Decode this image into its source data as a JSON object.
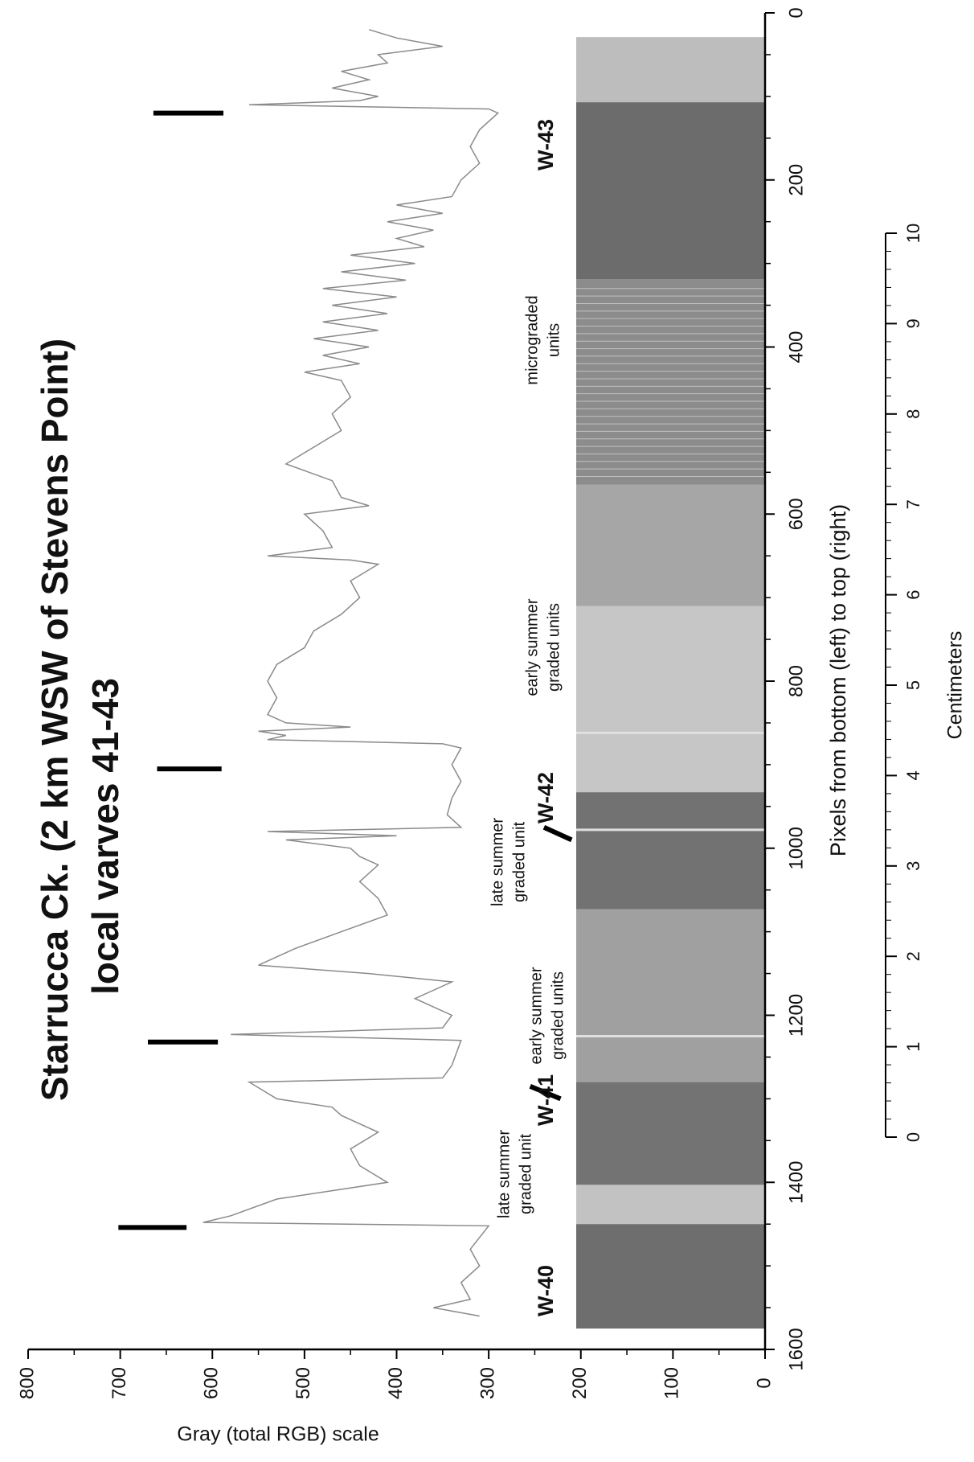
{
  "chart_data": {
    "type": "line",
    "title": "Starrucca Ck. (2 km WSW of Stevens Point)",
    "subtitle": "local varves 41-43",
    "x_label": "Pixels from bottom (left) to top (right)",
    "y_label": "Gray (total RGB) scale",
    "xlim": [
      0,
      1600
    ],
    "xticks": [
      0,
      200,
      400,
      600,
      800,
      1000,
      1200,
      1400,
      1600
    ],
    "ylim": [
      0,
      800
    ],
    "yticks": [
      0,
      100,
      200,
      300,
      400,
      500,
      600,
      700,
      800
    ],
    "color": "#8a8a8a",
    "x": [
      20,
      30,
      40,
      50,
      60,
      70,
      80,
      90,
      100,
      105,
      110,
      115,
      120,
      140,
      160,
      180,
      200,
      220,
      230,
      240,
      250,
      260,
      270,
      280,
      290,
      300,
      310,
      320,
      330,
      340,
      350,
      360,
      370,
      380,
      390,
      400,
      410,
      420,
      430,
      440,
      460,
      480,
      500,
      520,
      540,
      560,
      580,
      590,
      600,
      620,
      640,
      650,
      655,
      660,
      680,
      700,
      720,
      740,
      760,
      780,
      800,
      820,
      840,
      850,
      855,
      860,
      865,
      870,
      875,
      880,
      900,
      920,
      940,
      960,
      975,
      980,
      985,
      990,
      1000,
      1010,
      1020,
      1040,
      1060,
      1080,
      1100,
      1120,
      1140,
      1150,
      1160,
      1180,
      1200,
      1215,
      1223,
      1230,
      1260,
      1275,
      1280,
      1300,
      1310,
      1320,
      1340,
      1360,
      1380,
      1400,
      1420,
      1440,
      1448,
      1452,
      1480,
      1500,
      1520,
      1540,
      1550,
      1560
    ],
    "values": [
      430,
      400,
      350,
      420,
      410,
      460,
      430,
      470,
      420,
      440,
      560,
      300,
      290,
      310,
      320,
      310,
      330,
      340,
      400,
      350,
      410,
      360,
      400,
      370,
      450,
      380,
      460,
      390,
      480,
      400,
      470,
      410,
      480,
      420,
      490,
      430,
      480,
      440,
      500,
      460,
      450,
      470,
      460,
      490,
      520,
      470,
      460,
      430,
      500,
      480,
      470,
      540,
      450,
      420,
      450,
      440,
      460,
      490,
      500,
      530,
      540,
      530,
      540,
      520,
      450,
      550,
      520,
      540,
      350,
      330,
      340,
      330,
      340,
      345,
      330,
      540,
      400,
      520,
      450,
      440,
      420,
      440,
      420,
      410,
      460,
      510,
      550,
      430,
      340,
      380,
      340,
      350,
      580,
      330,
      340,
      350,
      560,
      530,
      470,
      460,
      420,
      450,
      440,
      410,
      530,
      580,
      610,
      300,
      320,
      310,
      330,
      320,
      360,
      310
    ],
    "varve_labels": [
      "W-43",
      "W-42",
      "W-41",
      "W-40"
    ],
    "notes": [
      [
        "micrograded",
        "units"
      ],
      [
        "early summer",
        "graded units"
      ],
      [
        "late summer",
        "graded unit"
      ],
      [
        "early summer",
        "graded units"
      ],
      [
        "late summer",
        "graded unit"
      ]
    ],
    "scale_bar": {
      "label": "Centimeters",
      "ticks": [
        0,
        1,
        2,
        3,
        4,
        5,
        6,
        7,
        8,
        9,
        10
      ]
    }
  }
}
